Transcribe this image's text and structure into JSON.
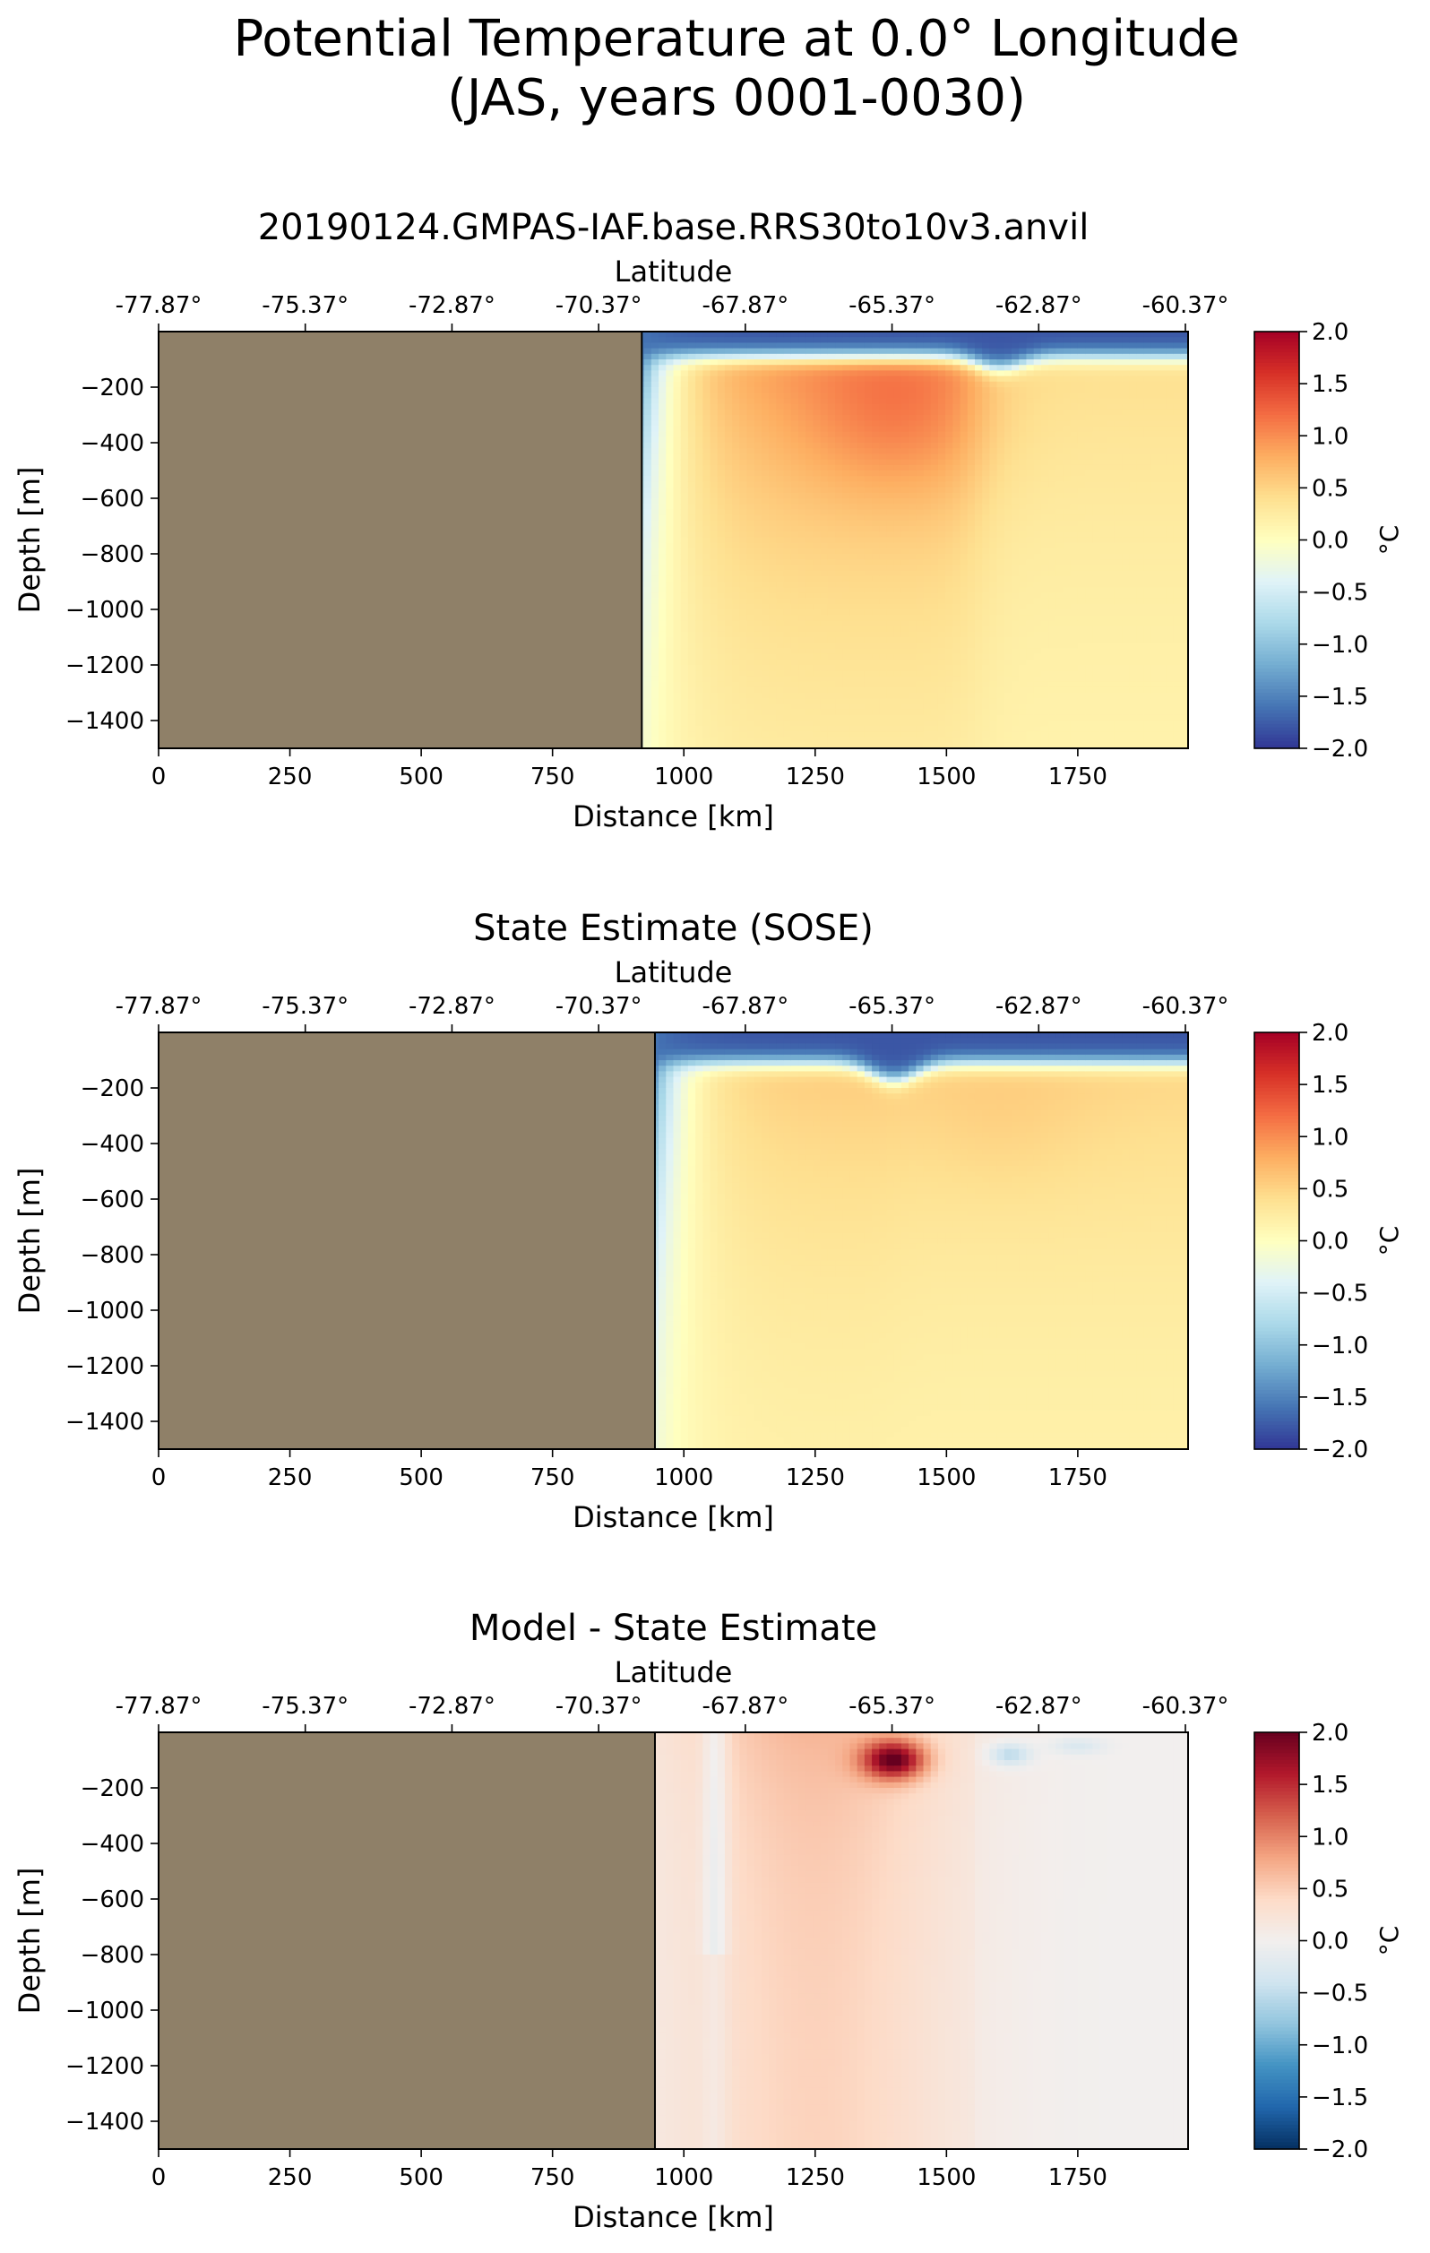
{
  "suptitle": [
    "Potential Temperature at 0.0° Longitude",
    "(JAS, years 0001-0030)"
  ],
  "chart_data": [
    {
      "type": "heatmap",
      "title": "20190124.GMPAS-IAF.base.RRS30to10v3.anvil",
      "xlabel": "Distance [km]",
      "ylabel": "Depth [m]",
      "top_xlabel": "Latitude",
      "xlim": [
        0,
        1960
      ],
      "ylim": [
        -1500,
        0
      ],
      "xticks": [
        0,
        250,
        500,
        750,
        1000,
        1250,
        1500,
        1750
      ],
      "yticks": [
        -200,
        -400,
        -600,
        -800,
        -1000,
        -1200,
        -1400
      ],
      "lat_ticks": [
        "-77.87°",
        "-75.37°",
        "-72.87°",
        "-70.37°",
        "-67.87°",
        "-65.37°",
        "-62.87°",
        "-60.37°"
      ],
      "colorbar": {
        "label": "°C",
        "range": [
          -2.0,
          2.0
        ],
        "ticks": [
          "2.0",
          "1.5",
          "1.0",
          "0.5",
          "0.0",
          "−0.5",
          "−1.0",
          "−1.5",
          "−2.0"
        ],
        "colormap": "RdYlBu_r"
      },
      "land_edge_km": 920,
      "field": {
        "shelf_km": 920,
        "surface_cold_depth_m": 90,
        "cold_wedge_km": 70,
        "core_temp": 1.05,
        "north_temp": 0.45,
        "bottom_temp": 0.1,
        "front_km": 1560,
        "hot_spot": [
          1400,
          -300,
          0.35
        ],
        "surface_dip": [
          1600,
          40
        ]
      },
      "colors": {
        "land": "#8f8068"
      }
    },
    {
      "type": "heatmap",
      "title": "State Estimate (SOSE)",
      "xlabel": "Distance [km]",
      "ylabel": "Depth [m]",
      "top_xlabel": "Latitude",
      "xlim": [
        0,
        1960
      ],
      "ylim": [
        -1500,
        0
      ],
      "xticks": [
        0,
        250,
        500,
        750,
        1000,
        1250,
        1500,
        1750
      ],
      "yticks": [
        -200,
        -400,
        -600,
        -800,
        -1000,
        -1200,
        -1400
      ],
      "lat_ticks": [
        "-77.87°",
        "-75.37°",
        "-72.87°",
        "-70.37°",
        "-67.87°",
        "-65.37°",
        "-62.87°",
        "-60.37°"
      ],
      "colorbar": {
        "label": "°C",
        "range": [
          -2.0,
          2.0
        ],
        "ticks": [
          "2.0",
          "1.5",
          "1.0",
          "0.5",
          "0.0",
          "−0.5",
          "−1.0",
          "−1.5",
          "−2.0"
        ],
        "colormap": "RdYlBu_r"
      },
      "land_edge_km": 945,
      "field": {
        "shelf_km": 945,
        "surface_cold_depth_m": 110,
        "cold_wedge_km": 60,
        "core_temp": 0.65,
        "north_temp": 0.55,
        "bottom_temp": 0.1,
        "front_km": 1400,
        "hot_spot": [
          1600,
          -300,
          0.1
        ],
        "surface_dip": [
          1400,
          60
        ]
      },
      "colors": {
        "land": "#8f8068"
      }
    },
    {
      "type": "heatmap",
      "title": "Model - State Estimate",
      "xlabel": "Distance [km]",
      "ylabel": "Depth [m]",
      "top_xlabel": "Latitude",
      "xlim": [
        0,
        1960
      ],
      "ylim": [
        -1500,
        0
      ],
      "xticks": [
        0,
        250,
        500,
        750,
        1000,
        1250,
        1500,
        1750
      ],
      "yticks": [
        -200,
        -400,
        -600,
        -800,
        -1000,
        -1200,
        -1400
      ],
      "lat_ticks": [
        "-77.87°",
        "-75.37°",
        "-72.87°",
        "-70.37°",
        "-67.87°",
        "-65.37°",
        "-62.87°",
        "-60.37°"
      ],
      "colorbar": {
        "label": "°C",
        "range": [
          -2.0,
          2.0
        ],
        "ticks": [
          "2.0",
          "1.5",
          "1.0",
          "0.5",
          "0.0",
          "−0.5",
          "−1.0",
          "−1.5",
          "−2.0"
        ],
        "colormap": "RdBu_r"
      },
      "land_edge_km": 945,
      "field": {
        "shelf_km": 945,
        "surface_cold_depth_m": 0,
        "cold_wedge_km": 0,
        "core_temp": 0.4,
        "north_temp": -0.05,
        "bottom_temp": 0.15,
        "front_km": 1560,
        "hot_spot": [
          1400,
          -100,
          1.6
        ],
        "surface_dip": [
          1620,
          0
        ]
      },
      "colors": {
        "land": "#8f8068"
      }
    }
  ]
}
